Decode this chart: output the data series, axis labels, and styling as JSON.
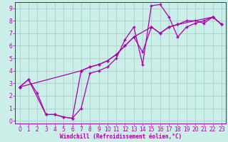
{
  "xlabel": "Windchill (Refroidissement éolien,°C)",
  "bg_color": "#cceee8",
  "grid_color": "#aad4ce",
  "line_color": "#aa00aa",
  "spine_color": "#8800aa",
  "xlim": [
    -0.5,
    23.5
  ],
  "ylim": [
    -0.2,
    9.5
  ],
  "xticks": [
    0,
    1,
    2,
    3,
    4,
    5,
    6,
    7,
    8,
    9,
    10,
    11,
    12,
    13,
    14,
    15,
    16,
    17,
    18,
    19,
    20,
    21,
    22,
    23
  ],
  "yticks": [
    0,
    1,
    2,
    3,
    4,
    5,
    6,
    7,
    8,
    9
  ],
  "line1_x": [
    0,
    1,
    2,
    3,
    4,
    5,
    6,
    7,
    8,
    9,
    10,
    11,
    12,
    13,
    14,
    15,
    16,
    17,
    18,
    19,
    20,
    21,
    22,
    23
  ],
  "line1_y": [
    2.7,
    3.3,
    2.2,
    0.5,
    0.5,
    0.3,
    0.2,
    1.0,
    3.8,
    4.0,
    4.3,
    5.0,
    6.5,
    7.5,
    4.5,
    9.2,
    9.3,
    8.3,
    6.7,
    7.5,
    7.8,
    8.0,
    8.3,
    7.7
  ],
  "line2_x": [
    0,
    1,
    3,
    4,
    5,
    6,
    7,
    8,
    9,
    10,
    11,
    12,
    13,
    15,
    16,
    17,
    18,
    22,
    23
  ],
  "line2_y": [
    2.7,
    3.3,
    0.5,
    0.5,
    0.3,
    0.2,
    4.0,
    4.3,
    4.5,
    4.8,
    5.3,
    6.0,
    6.7,
    7.5,
    7.0,
    7.5,
    7.7,
    8.3,
    7.7
  ],
  "line3_x": [
    0,
    7,
    8,
    9,
    10,
    11,
    12,
    13,
    14,
    15,
    16,
    17,
    18,
    19,
    20,
    21,
    22,
    23
  ],
  "line3_y": [
    2.7,
    4.0,
    4.3,
    4.5,
    4.8,
    5.3,
    6.0,
    6.7,
    5.5,
    7.5,
    7.0,
    7.5,
    7.7,
    8.0,
    8.0,
    7.8,
    8.3,
    7.7
  ]
}
